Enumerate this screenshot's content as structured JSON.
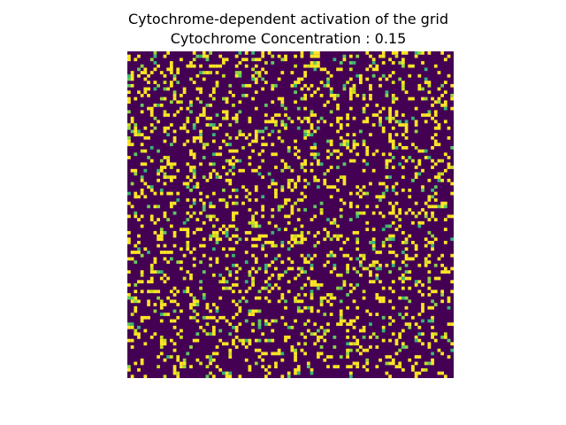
{
  "chart_data": {
    "type": "heatmap",
    "title": "Cytochrome-dependent activation of the grid",
    "subtitle": "Cytochrome Concentration : 0.15",
    "grid_rows": 100,
    "grid_cols": 100,
    "value_range": [
      0,
      1
    ],
    "state_colors": {
      "0": "#440154",
      "1": "#fde725"
    },
    "intermediate_colors": [
      "#35b779",
      "#5ec962",
      "#90d743",
      "#c8e020"
    ],
    "axes_visible": false,
    "activation_fraction": 0.15,
    "seed": 17
  }
}
